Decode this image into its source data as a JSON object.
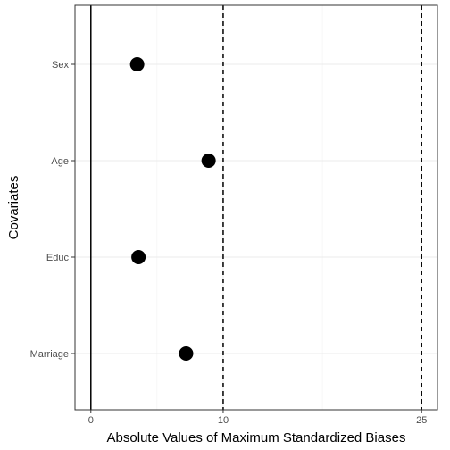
{
  "chart_data": {
    "type": "scatter",
    "orientation": "horizontal",
    "xlabel": "Absolute Values of Maximum Standardized Biases",
    "ylabel": "Covariates",
    "xlim": [
      -1.2,
      26.2
    ],
    "x_ticks": [
      0,
      10,
      25
    ],
    "categories": [
      "Sex",
      "Age",
      "Educ",
      "Marriage"
    ],
    "values": [
      3.5,
      8.9,
      3.6,
      7.2
    ],
    "reference_lines": [
      {
        "x": 0,
        "style": "solid"
      },
      {
        "x": 10,
        "style": "dashed"
      },
      {
        "x": 25,
        "style": "dashed"
      }
    ],
    "grid": true,
    "marker_color": "#000000"
  }
}
